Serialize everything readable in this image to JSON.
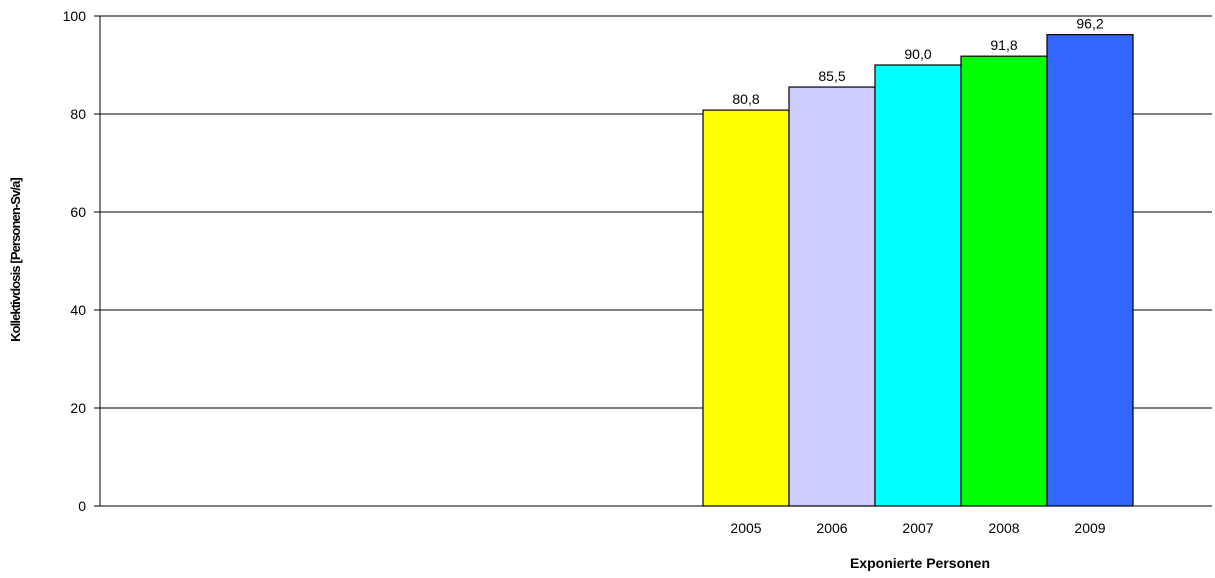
{
  "chart_data": {
    "type": "bar",
    "categories": [
      "2005",
      "2006",
      "2007",
      "2008",
      "2009"
    ],
    "values": [
      80.8,
      85.5,
      90.0,
      91.8,
      96.2
    ],
    "data_labels": [
      "80,8",
      "85,5",
      "90,0",
      "91,8",
      "96,2"
    ],
    "xlabel": "Exponierte Personen",
    "ylabel": "Kollektivdosis [Personen-Sv/a]",
    "ylim": [
      0,
      100
    ],
    "yticks": [
      0,
      20,
      40,
      60,
      80,
      100
    ],
    "grid": true,
    "bar_colors": [
      "#ffff00",
      "#ccccff",
      "#00ffff",
      "#00ff00",
      "#3366ff"
    ]
  }
}
